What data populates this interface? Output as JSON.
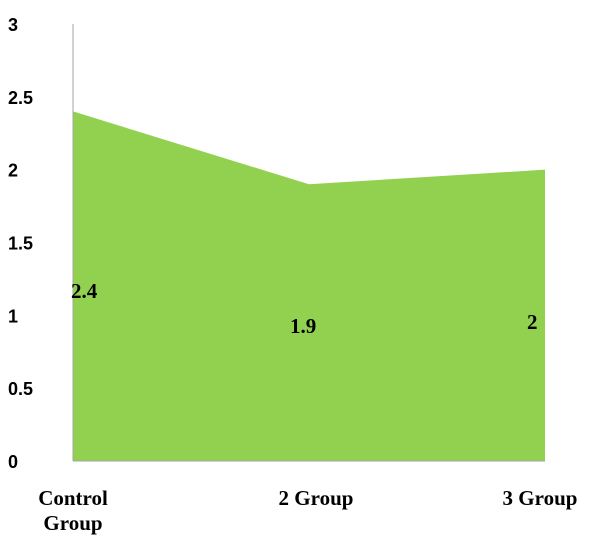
{
  "chart_data": {
    "type": "area",
    "categories": [
      "Control Group",
      "2 Group",
      "3 Group"
    ],
    "category_lines": [
      [
        "Control",
        "Group"
      ],
      [
        "2 Group"
      ],
      [
        "3 Group"
      ]
    ],
    "values": [
      2.4,
      1.9,
      2
    ],
    "data_labels": [
      "2.4",
      "1.9",
      "2"
    ],
    "y_ticks": [
      "0",
      "0.5",
      "1",
      "1.5",
      "2",
      "2.5",
      "3"
    ],
    "ylim": [
      0,
      3
    ],
    "grid": false,
    "legend": "none",
    "colors": {
      "fill": "#92d050",
      "axis": "#a6a6a6",
      "text": "#000000"
    }
  }
}
